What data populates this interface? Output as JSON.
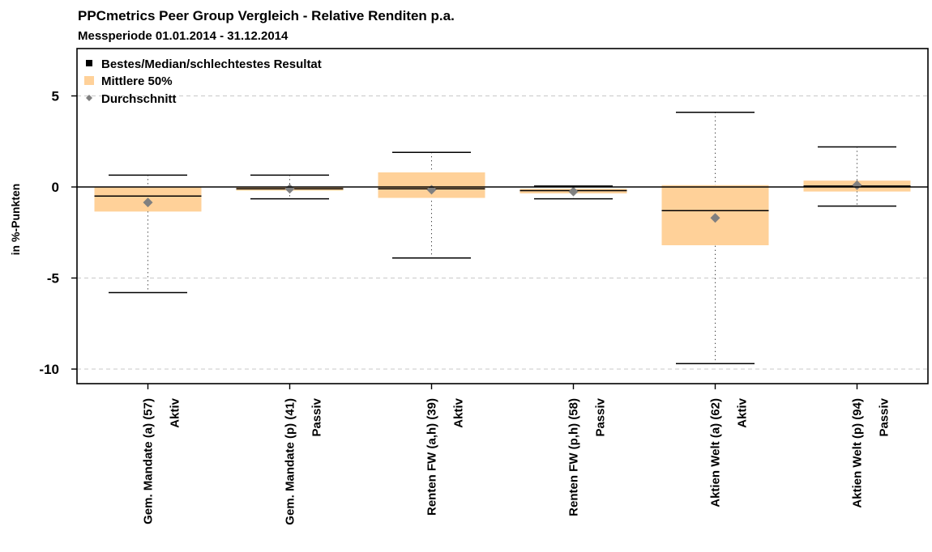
{
  "chart_data": {
    "type": "boxplot",
    "title": "PPCmetrics Peer Group Vergleich - Relative Renditen p.a.",
    "subtitle": "Messperiode 01.01.2014 - 31.12.2014",
    "ylabel": "in %-Punkten",
    "ylim": [
      -10.8,
      7.6
    ],
    "yticks": [
      5,
      0,
      -5,
      -10
    ],
    "ytick_labels": [
      "5",
      "0",
      "-5",
      "-10"
    ],
    "grid": "horizontal dashed",
    "legend_position": "top-left",
    "legend": {
      "extremes": "Bestes/Median/schlechtestes Resultat",
      "iqr": "Mittlere 50%",
      "mean": "Durchschnitt"
    },
    "colors": {
      "box": "#ffd199",
      "mean": "#808080",
      "grid": "#c8c8c8",
      "line": "#000000"
    },
    "categories": [
      {
        "label1": "Gem. Mandate (a) (57)",
        "label2": "Aktiv",
        "max": 0.65,
        "q3": 0.0,
        "median": -0.5,
        "q1": -1.35,
        "min": -5.8,
        "mean": -0.85
      },
      {
        "label1": "Gem. Mandate (p) (41)",
        "label2": "Passiv",
        "max": 0.65,
        "q3": 0.0,
        "median": -0.1,
        "q1": -0.2,
        "min": -0.65,
        "mean": -0.1
      },
      {
        "label1": "Renten FW (a,h) (39)",
        "label2": "Aktiv",
        "max": 1.9,
        "q3": 0.8,
        "median": -0.1,
        "q1": -0.6,
        "min": -3.9,
        "mean": -0.15
      },
      {
        "label1": "Renten FW (p,h) (58)",
        "label2": "Passiv",
        "max": 0.05,
        "q3": -0.1,
        "median": -0.2,
        "q1": -0.35,
        "min": -0.65,
        "mean": -0.25
      },
      {
        "label1": "Aktien Welt (a) (62)",
        "label2": "Aktiv",
        "max": 4.1,
        "q3": 0.1,
        "median": -1.3,
        "q1": -3.2,
        "min": -9.7,
        "mean": -1.7
      },
      {
        "label1": "Aktien Welt (p) (94)",
        "label2": "Passiv",
        "max": 2.2,
        "q3": 0.35,
        "median": 0.05,
        "q1": -0.25,
        "min": -1.05,
        "mean": 0.1
      }
    ]
  }
}
